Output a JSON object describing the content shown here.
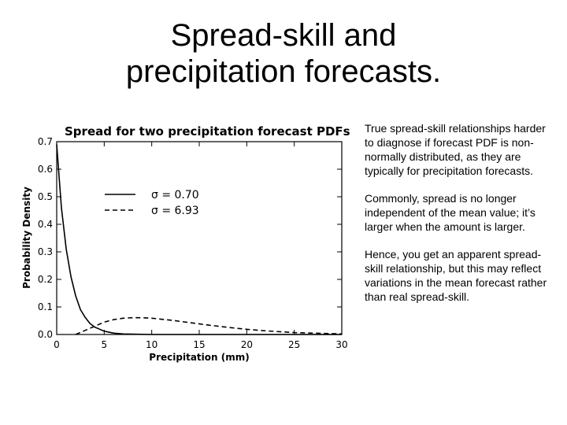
{
  "slide": {
    "title_line1": "Spread-skill and",
    "title_line2": "precipitation forecasts."
  },
  "notes": [
    "True spread-skill relationships harder to diagnose if forecast PDF is non-normally distributed, as they are typically for precipitation forecasts.",
    "Commonly, spread is no longer independent of the mean value; it’s larger when the amount is larger.",
    "Hence, you get an apparent spread-skill relationship, but this may reflect variations in the mean forecast rather than real spread-skill."
  ],
  "chart_data": {
    "type": "line",
    "title": "Spread for two precipitation forecast PDFs",
    "xlabel": "Precipitation (mm)",
    "ylabel": "Probability Density",
    "xlim": [
      0,
      30
    ],
    "ylim": [
      0,
      0.7
    ],
    "x_ticks": [
      0,
      5,
      10,
      15,
      20,
      25,
      30
    ],
    "y_ticks": [
      0.0,
      0.1,
      0.2,
      0.3,
      0.4,
      0.5,
      0.6,
      0.7
    ],
    "y_tick_labels": [
      "0.0",
      "0.1",
      "0.2",
      "0.3",
      "0.4",
      "0.5",
      "0.6",
      "0.7"
    ],
    "grid": false,
    "legend_position": "upper-left",
    "series": [
      {
        "name": "σ = 0.70",
        "style": "solid",
        "x": [
          0,
          0.5,
          1,
          1.5,
          2,
          2.5,
          3,
          3.5,
          4,
          5,
          6,
          7,
          8,
          10,
          30
        ],
        "y": [
          0.69,
          0.46,
          0.31,
          0.21,
          0.14,
          0.09,
          0.062,
          0.04,
          0.027,
          0.012,
          0.005,
          0.002,
          0.001,
          0.0,
          0.0
        ]
      },
      {
        "name": "σ = 6.93",
        "style": "dashed",
        "x": [
          2,
          3,
          4,
          5,
          6,
          7,
          8,
          9,
          10,
          12,
          14,
          16,
          18,
          20,
          22,
          25,
          28,
          30
        ],
        "y": [
          0.0,
          0.015,
          0.03,
          0.045,
          0.054,
          0.059,
          0.061,
          0.061,
          0.059,
          0.052,
          0.043,
          0.034,
          0.026,
          0.019,
          0.013,
          0.007,
          0.004,
          0.002
        ]
      }
    ]
  }
}
